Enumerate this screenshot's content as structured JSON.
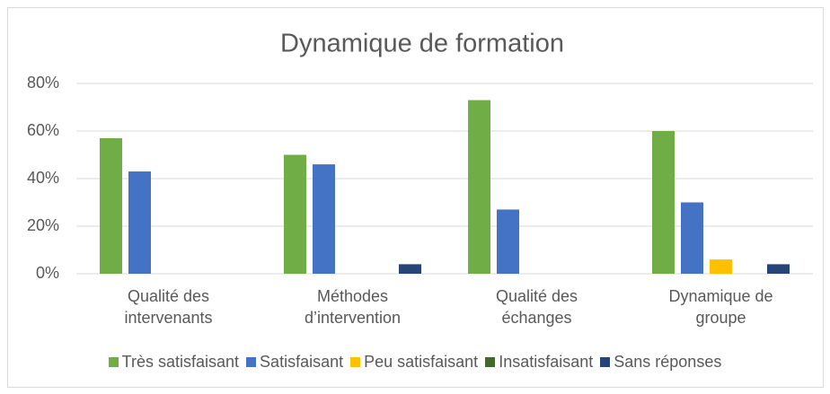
{
  "chart_data": {
    "type": "bar",
    "title": "Dynamique de formation",
    "categories": [
      "Qualité des intervenants",
      "Méthodes d’intervention",
      "Qualité des échanges",
      "Dynamique de groupe"
    ],
    "series": [
      {
        "name": "Très satisfaisant",
        "color": "#70ad47",
        "values": [
          57,
          50,
          73,
          60
        ]
      },
      {
        "name": "Satisfaisant",
        "color": "#4472c4",
        "values": [
          43,
          46,
          27,
          30
        ]
      },
      {
        "name": "Peu satisfaisant",
        "color": "#ffc000",
        "values": [
          0,
          0,
          0,
          6
        ]
      },
      {
        "name": "Insatisfaisant",
        "color": "#43682b",
        "values": [
          0,
          0,
          0,
          0
        ]
      },
      {
        "name": "Sans réponses",
        "color": "#264478",
        "values": [
          0,
          4,
          0,
          4
        ]
      }
    ],
    "ylim": [
      0,
      80
    ],
    "yticks": [
      {
        "value": 0,
        "label": "0%"
      },
      {
        "value": 20,
        "label": "20%"
      },
      {
        "value": 40,
        "label": "40%"
      },
      {
        "value": 60,
        "label": "60%"
      },
      {
        "value": 80,
        "label": "80%"
      }
    ],
    "grid": true,
    "legend": "bottom"
  }
}
